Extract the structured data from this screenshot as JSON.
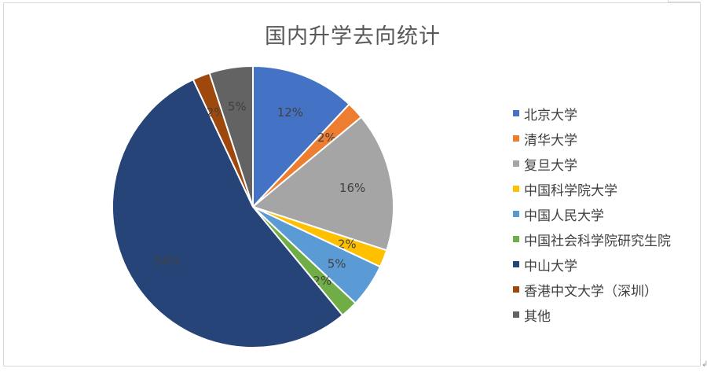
{
  "chart_data": {
    "type": "pie",
    "title": "国内升学去向统计",
    "legend_position": "right",
    "categories": [
      "北京大学",
      "清华大学",
      "复旦大学",
      "中国科学院大学",
      "中国人民大学",
      "中国社会科学院研究生院",
      "中山大学",
      "香港中文大学（深圳）",
      "其他"
    ],
    "values": [
      12,
      2,
      16,
      2,
      5,
      2,
      54,
      2,
      5
    ],
    "labels": [
      "12%",
      "2%",
      "16%",
      "2%",
      "5%",
      "2%",
      "54%",
      "2%",
      "5%"
    ],
    "colors": [
      "#4472c4",
      "#ed7d31",
      "#a5a5a5",
      "#ffc000",
      "#5b9bd5",
      "#70ad47",
      "#264478",
      "#9e480e",
      "#636363"
    ]
  },
  "page": {
    "paragraph_mark": "↲"
  }
}
